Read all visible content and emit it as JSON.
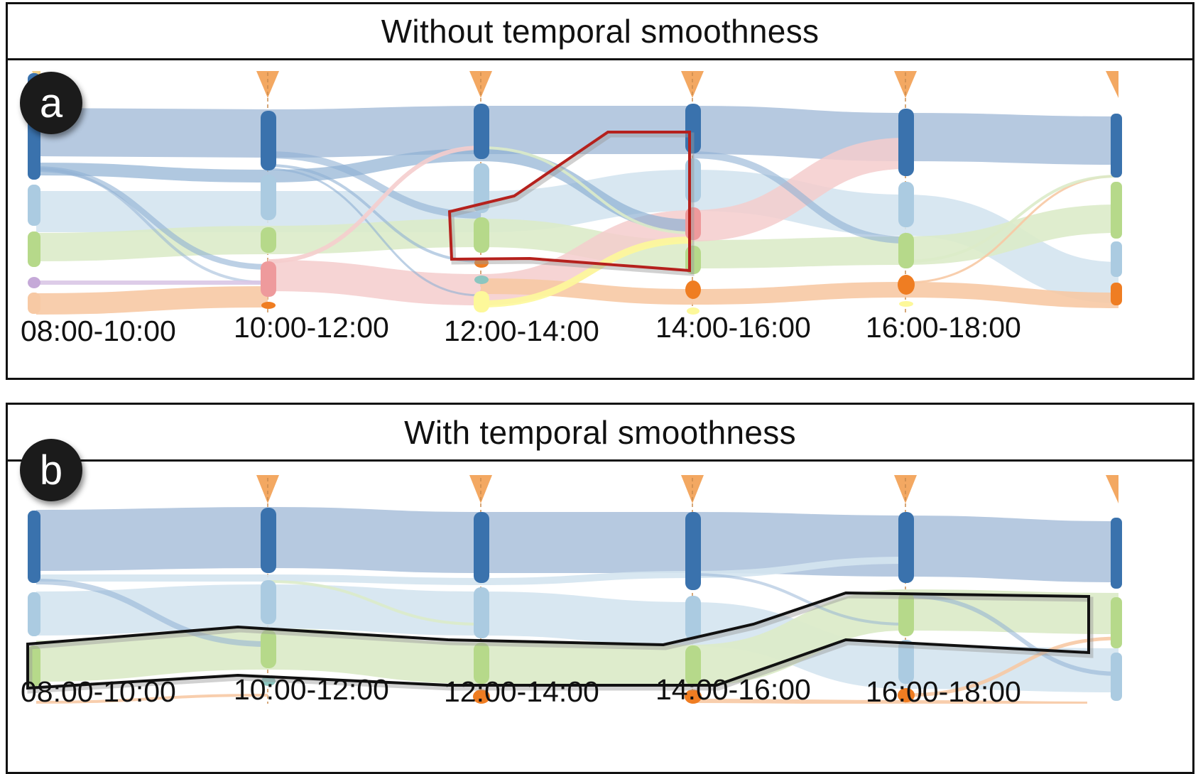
{
  "panel_a": {
    "title": "Without temporal smoothness",
    "badge": "a",
    "time_labels": [
      "08:00-10:00",
      "10:00-12:00",
      "12:00-14:00",
      "14:00-16:00",
      "16:00-18:00"
    ]
  },
  "panel_b": {
    "title": "With temporal smoothness",
    "badge": "b",
    "time_labels": [
      "08:00-10:00",
      "10:00-12:00",
      "12:00-14:00",
      "14:00-16:00",
      "16:00-18:00"
    ]
  },
  "colors": {
    "dark_blue": "#3a72ad",
    "dark_blue_flow": "#a9c0da",
    "light_blue": "#abcbe1",
    "light_blue_flow": "#d4e4ef",
    "green": "#b6d98a",
    "green_flow": "#dcebc9",
    "red": "#ee9a9c",
    "red_flow": "#f5cdcd",
    "orange": "#ef7d22",
    "orange_flow": "#f7c9a4",
    "yellow": "#fdf89a",
    "teal": "#8cc6c0",
    "purple": "#c5a9d8",
    "marker": "#f3a862",
    "highlight_a": "#b5211d",
    "highlight_b": "#111111"
  }
}
